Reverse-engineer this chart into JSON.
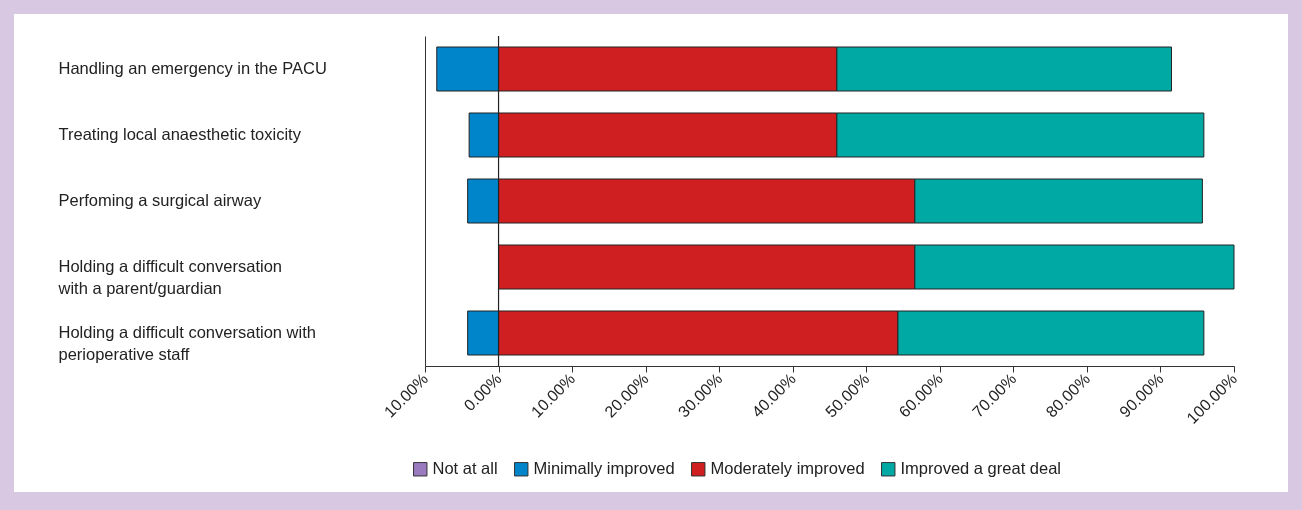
{
  "chart_data": {
    "type": "bar",
    "orientation": "horizontal",
    "stacked": true,
    "categories": [
      "Handling an emergency in the PACU",
      "Treating local anaesthetic toxicity",
      "Perfoming a surgical airway",
      "Holding a difficult conversation\nwith a parent/guardian",
      "Holding a difficult conversation with\nperioperative staff"
    ],
    "series": [
      {
        "name": "Not at all",
        "color": "#9b7bc0",
        "values": [
          null,
          null,
          null,
          null,
          null
        ]
      },
      {
        "name": "Minimally improved",
        "color": "#0085ca",
        "values": [
          -8.4,
          -4.0,
          -4.2,
          null,
          -4.2
        ]
      },
      {
        "name": "Moderately improved",
        "color": "#d01f20",
        "values": [
          46.0,
          46.0,
          56.6,
          56.6,
          54.3
        ]
      },
      {
        "name": "Improved a great deal",
        "color": "#00a9a4",
        "values": [
          45.5,
          49.9,
          39.1,
          43.4,
          41.6
        ]
      }
    ],
    "xlim": [
      -10,
      100
    ],
    "xticks": [
      {
        "value": -10,
        "label": "10.00%"
      },
      {
        "value": 0,
        "label": "0.00%"
      },
      {
        "value": 10,
        "label": "10.00%"
      },
      {
        "value": 20,
        "label": "20.00%"
      },
      {
        "value": 30,
        "label": "30.00%"
      },
      {
        "value": 40,
        "label": "40.00%"
      },
      {
        "value": 50,
        "label": "50.00%"
      },
      {
        "value": 60,
        "label": "60.00%"
      },
      {
        "value": 70,
        "label": "70.00%"
      },
      {
        "value": 80,
        "label": "80.00%"
      },
      {
        "value": 90,
        "label": "90.00%"
      },
      {
        "value": 100,
        "label": "100.00%"
      }
    ],
    "ref_lines": [
      {
        "axis": "x",
        "value": 0,
        "color": "#222222"
      }
    ],
    "legend": "bottom"
  }
}
